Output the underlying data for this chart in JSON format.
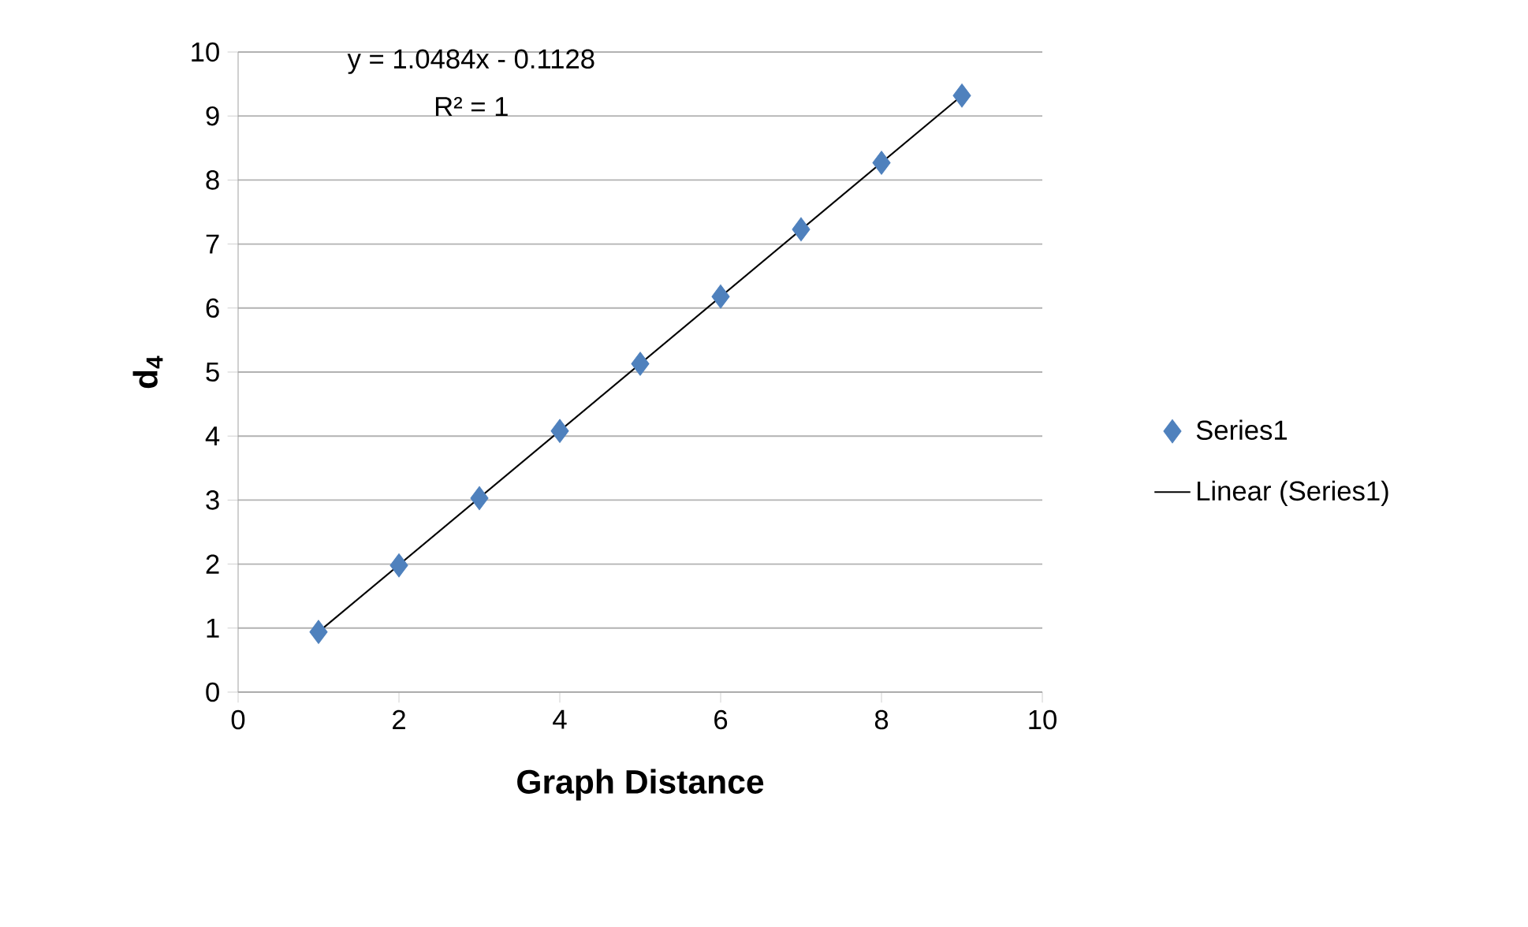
{
  "chart_data": {
    "type": "scatter",
    "xlabel": "Graph Distance",
    "ylabel": "d$_{4}$",
    "annotations": [
      "y = 1.0484x - 0.1128",
      "R² = 1"
    ],
    "series": [
      {
        "name": "Series1",
        "marker": "diamond",
        "color": "#4f81bd",
        "x": [
          1,
          2,
          3,
          4,
          5,
          6,
          7,
          8,
          9
        ],
        "values": [
          0.94,
          1.98,
          3.03,
          4.08,
          5.13,
          6.18,
          7.23,
          8.27,
          9.32
        ]
      },
      {
        "name": "Linear (Series1)",
        "type": "line",
        "color": "#000000",
        "x": [
          1,
          9
        ],
        "values": [
          0.94,
          9.32
        ]
      }
    ],
    "xlim": [
      0,
      10
    ],
    "ylim": [
      0,
      10
    ],
    "xticks": [
      0,
      2,
      4,
      6,
      8,
      10
    ],
    "yticks": [
      0,
      1,
      2,
      3,
      4,
      5,
      6,
      7,
      8,
      9,
      10
    ],
    "grid": "y",
    "legend": "right"
  }
}
